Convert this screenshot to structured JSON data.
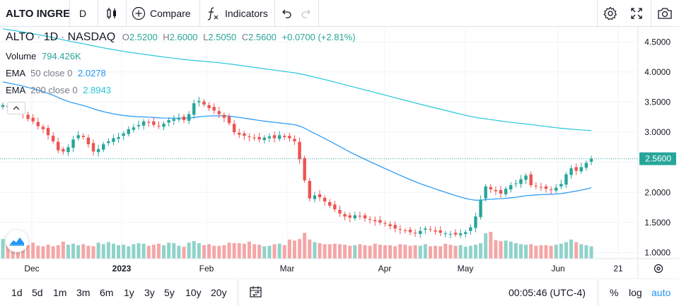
{
  "toolbar": {
    "symbol": "ALTO INGRE",
    "interval": "D",
    "compare_label": "Compare",
    "indicators_label": "Indicators"
  },
  "legend": {
    "symbol": "ALTO",
    "interval": "1D",
    "exchange": "NASDAQ",
    "open_key": "O",
    "open": "2.5200",
    "high_key": "H",
    "high": "2.6000",
    "low_key": "L",
    "low": "2.5050",
    "close_key": "C",
    "close": "2.5600",
    "change": "+0.0700 (+2.81%)",
    "volume_label": "Volume",
    "volume_value": "794.426K",
    "ema50_label": "EMA",
    "ema50_params": "50 close 0",
    "ema50_value": "2.0278",
    "ema200_label": "EMA",
    "ema200_params": "200 close 0",
    "ema200_value": "2.8943"
  },
  "colors": {
    "up": "#26a69a",
    "down": "#ef5350",
    "up_volume": "#8fd3c9",
    "down_volume": "#f5a6a6",
    "ema50": "#2196f3",
    "ema200": "#26c6da",
    "price_line": "#26a69a"
  },
  "bottom": {
    "ranges": [
      "1d",
      "5d",
      "1m",
      "3m",
      "6m",
      "1y",
      "3y",
      "5y",
      "10y",
      "20y"
    ],
    "time": "00:05:46 (UTC-4)",
    "percent": "%",
    "log": "log",
    "auto": "auto"
  },
  "chart_data": {
    "type": "candlestick",
    "y_ticks": [
      "4.5000",
      "4.0000",
      "3.5000",
      "3.0000",
      "2.5000",
      "2.0000",
      "1.5000",
      "1.0000"
    ],
    "ylim": [
      0.9,
      4.75
    ],
    "x_ticks": [
      "Dec",
      "2023",
      "Feb",
      "Mar",
      "Apr",
      "May",
      "Jun",
      "21"
    ],
    "last_price_label": "2.5600",
    "closes": [
      3.45,
      3.42,
      3.4,
      3.38,
      3.3,
      3.22,
      3.18,
      3.1,
      3.05,
      2.95,
      2.85,
      2.7,
      2.68,
      2.75,
      2.88,
      2.95,
      2.92,
      2.8,
      2.68,
      2.72,
      2.8,
      2.85,
      2.9,
      2.92,
      2.98,
      3.05,
      3.08,
      3.12,
      3.18,
      3.16,
      3.12,
      3.1,
      3.14,
      3.2,
      3.22,
      3.24,
      3.2,
      3.3,
      3.48,
      3.52,
      3.46,
      3.4,
      3.36,
      3.3,
      3.24,
      3.15,
      3.0,
      2.96,
      2.94,
      2.92,
      2.9,
      2.88,
      2.91,
      2.93,
      2.9,
      2.95,
      2.92,
      2.9,
      2.85,
      2.55,
      2.2,
      1.9,
      1.95,
      1.92,
      1.85,
      1.78,
      1.72,
      1.65,
      1.6,
      1.58,
      1.62,
      1.6,
      1.57,
      1.55,
      1.52,
      1.5,
      1.48,
      1.44,
      1.4,
      1.38,
      1.36,
      1.34,
      1.32,
      1.36,
      1.4,
      1.38,
      1.35,
      1.33,
      1.32,
      1.31,
      1.3,
      1.32,
      1.34,
      1.42,
      1.6,
      1.88,
      2.1,
      2.05,
      2.02,
      1.98,
      2.06,
      2.12,
      2.15,
      2.22,
      2.28,
      2.12,
      2.1,
      2.08,
      2.06,
      2.04,
      2.08,
      2.14,
      2.3,
      2.4,
      2.36,
      2.42,
      2.49,
      2.56
    ],
    "volumes": [
      380,
      350,
      290,
      330,
      300,
      260,
      310,
      250,
      240,
      270,
      240,
      260,
      330,
      270,
      290,
      260,
      280,
      250,
      240,
      310,
      280,
      320,
      290,
      260,
      270,
      240,
      280,
      300,
      290,
      250,
      270,
      290,
      260,
      310,
      300,
      250,
      230,
      310,
      340,
      300,
      260,
      280,
      250,
      250,
      260,
      310,
      300,
      300,
      290,
      330,
      280,
      270,
      240,
      250,
      280,
      290,
      260,
      370,
      350,
      380,
      500,
      370,
      320,
      300,
      280,
      280,
      290,
      280,
      270,
      250,
      260,
      280,
      260,
      250,
      290,
      270,
      260,
      260,
      240,
      280,
      270,
      250,
      260,
      250,
      280,
      240,
      250,
      240,
      290,
      270,
      250,
      260,
      230,
      250,
      270,
      300,
      490,
      520,
      360,
      340,
      350,
      330,
      300,
      280,
      270,
      280,
      250,
      260,
      260,
      250,
      270,
      290,
      320,
      370,
      320,
      280,
      260,
      240
    ]
  }
}
